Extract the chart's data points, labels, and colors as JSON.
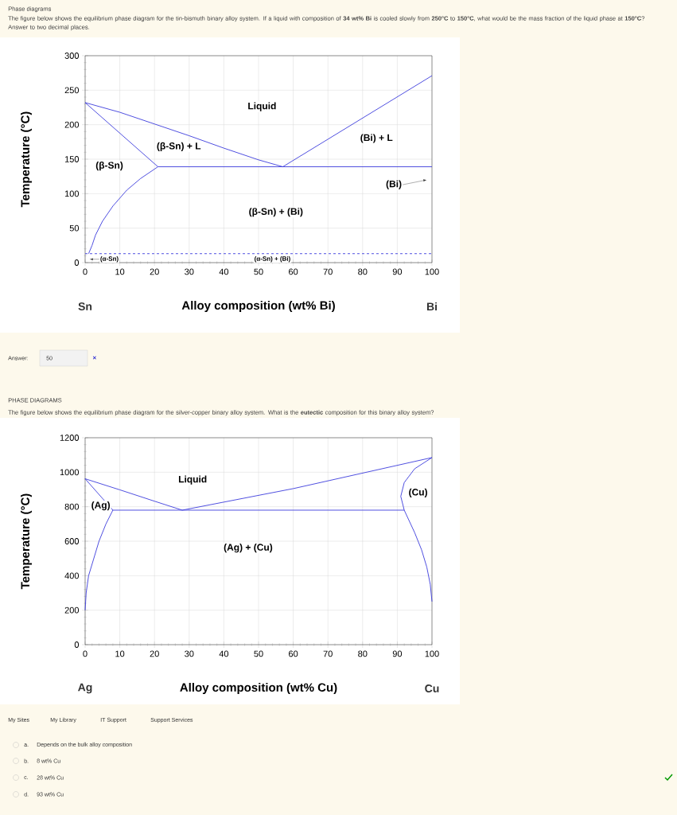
{
  "chart_data": [
    {
      "type": "line",
      "title": "Phase diagrams",
      "subtitle": "The figure below shows the equilibrium phase diagram for the tin-bismuth binary alloy system. If a liquid with composition of **34 wt% Bi** is cooled slowly from **250°C** to **150°C**, what would be the mass fraction of the liquid phase at **150°C**? Answer to two decimal places.",
      "xlabel": "Alloy composition (wt% Bi)",
      "ylabel": "Temperature (°C)",
      "xlim": [
        0,
        100
      ],
      "ylim": [
        0,
        300
      ],
      "xticks": [
        0,
        10,
        20,
        30,
        40,
        50,
        60,
        70,
        80,
        90,
        100
      ],
      "yticks": [
        0,
        50,
        100,
        150,
        200,
        250,
        300
      ],
      "grid": true,
      "marker": "none",
      "line_style": "solid",
      "series": [
        {
          "color": "#3c3cdc",
          "x": [
            0,
            10,
            20,
            30,
            40,
            50,
            57
          ],
          "values": [
            232,
            218,
            201,
            184,
            166,
            149,
            139
          ]
        },
        {
          "color": "#3c3cdc",
          "x": [
            57,
            100
          ],
          "values": [
            139,
            271
          ]
        },
        {
          "color": "#3c3cdc",
          "x": [
            0,
            21
          ],
          "values": [
            232,
            139
          ]
        },
        {
          "color": "#3c3cdc",
          "x": [
            21,
            100
          ],
          "values": [
            139,
            139
          ]
        },
        {
          "color": "#3c3cdc",
          "x": [
            1,
            2,
            3,
            5,
            8,
            12,
            16,
            21
          ],
          "values": [
            13,
            25,
            40,
            60,
            82,
            105,
            122,
            139
          ]
        }
      ],
      "ref_lines": [
        {
          "axis": "y",
          "value": 13,
          "color": "#3c3cdc",
          "line_style": "dashed"
        }
      ],
      "annotations": [
        "Sn",
        "Bi",
        "Answer:",
        "50",
        "×",
        "Liquid",
        "(β-Sn) + L",
        "(Bi) + L",
        "(β-Sn)",
        "(Bi)",
        "(β-Sn) + (Bi)",
        "(α-Sn)",
        "(α-Sn) + (Bi)"
      ]
    },
    {
      "type": "line",
      "title": "PHASE DIAGRAMS",
      "subtitle": "The figure below shows the equilibrium phase diagram for the silver-copper binary alloy system. What is the **eutectic** composition for this binary alloy system?",
      "xlabel": "Alloy composition (wt% Cu)",
      "ylabel": "Temperature (°C)",
      "xlim": [
        0,
        100
      ],
      "ylim": [
        0,
        1200
      ],
      "xticks": [
        0,
        10,
        20,
        30,
        40,
        50,
        60,
        70,
        80,
        90,
        100
      ],
      "yticks": [
        0,
        200,
        400,
        600,
        800,
        1000,
        1200
      ],
      "grid": true,
      "marker": "none",
      "line_style": "solid",
      "series": [
        {
          "color": "#3c3cdc",
          "x": [
            0,
            10,
            20,
            28
          ],
          "values": [
            962,
            898,
            832,
            780
          ]
        },
        {
          "color": "#3c3cdc",
          "x": [
            28,
            60,
            100
          ],
          "values": [
            780,
            905,
            1085
          ]
        },
        {
          "color": "#3c3cdc",
          "x": [
            8,
            92
          ],
          "values": [
            780,
            780
          ]
        },
        {
          "color": "#3c3cdc",
          "x": [
            0,
            8
          ],
          "values": [
            962,
            780
          ]
        },
        {
          "color": "#3c3cdc",
          "x": [
            0,
            0.3,
            1,
            2.5,
            4,
            6,
            8
          ],
          "values": [
            200,
            300,
            400,
            500,
            600,
            700,
            780
          ]
        },
        {
          "color": "#3c3cdc",
          "x": [
            100,
            95,
            92,
            91,
            92,
            95,
            97,
            98.5,
            99.5,
            100
          ],
          "values": [
            1085,
            1020,
            940,
            860,
            780,
            650,
            550,
            450,
            350,
            250
          ]
        }
      ],
      "annotations": [
        "Ag",
        "Cu",
        "My Sites",
        "My Library",
        "IT Support",
        "Support Services",
        "a.",
        "Depends on the bulk alloy composition",
        "b.",
        "8 wt% Cu",
        "c.",
        "28 wt% Cu",
        "d.",
        "93 wt% Cu",
        "Liquid",
        "(Ag)",
        "(Cu)",
        "(Ag) + (Cu)"
      ]
    }
  ]
}
